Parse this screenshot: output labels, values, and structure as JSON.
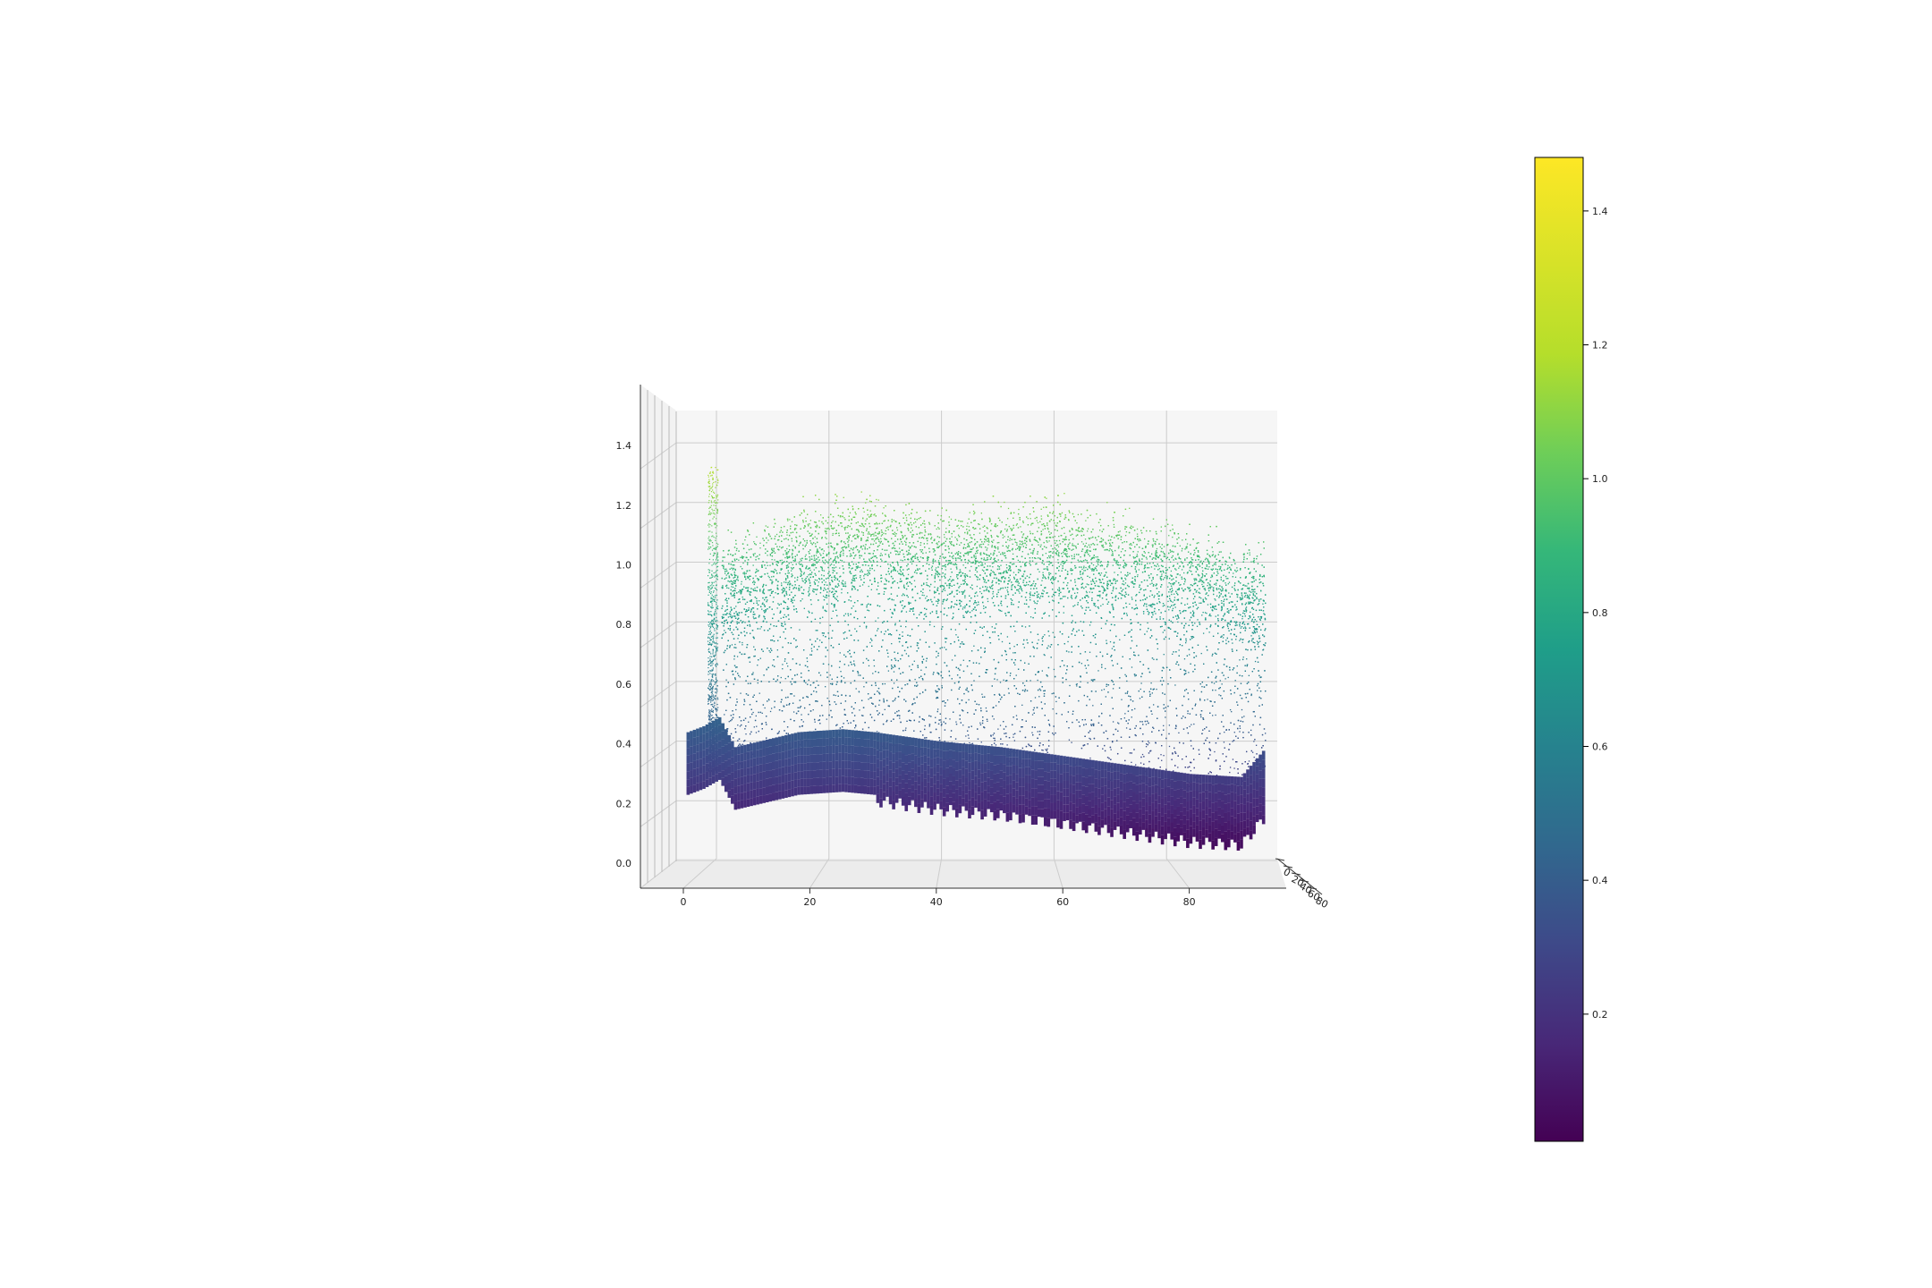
{
  "chart_data": {
    "type": "scatter",
    "projection": "3d",
    "title": "",
    "xlabel": "",
    "ylabel": "",
    "zlabel": "",
    "grid": true,
    "colormap": "viridis",
    "x_range": [
      -6,
      92
    ],
    "z_range": [
      -0.08,
      1.58
    ],
    "x_ticks": [
      "0",
      "20",
      "40",
      "60",
      "80"
    ],
    "z_ticks": [
      "0.0",
      "0.2",
      "0.4",
      "0.6",
      "0.8",
      "1.0",
      "1.2",
      "1.4"
    ],
    "depth_ticks": [
      "0",
      "20",
      "40",
      "60",
      "80"
    ],
    "colorbar": {
      "range": [
        0.01,
        1.48
      ],
      "ticks": [
        "0.2",
        "0.4",
        "0.6",
        "0.8",
        "1.0",
        "1.2",
        "1.4"
      ]
    },
    "lower_band_profile": {
      "x": [
        0.5,
        3,
        5.5,
        8,
        12,
        18,
        25,
        30,
        40,
        50,
        60,
        70,
        80,
        88,
        92
      ],
      "z": [
        0.25,
        0.27,
        0.3,
        0.2,
        0.22,
        0.25,
        0.26,
        0.25,
        0.22,
        0.2,
        0.17,
        0.14,
        0.11,
        0.1,
        0.2
      ]
    },
    "upper_band_profile": {
      "x": [
        6,
        10,
        20,
        30,
        40,
        50,
        60,
        70,
        80,
        88
      ],
      "z": [
        1.05,
        1.1,
        1.18,
        1.22,
        1.15,
        1.18,
        1.2,
        1.15,
        1.1,
        1.05
      ]
    },
    "spike": {
      "x": 4.6,
      "z_max": 1.32
    }
  }
}
